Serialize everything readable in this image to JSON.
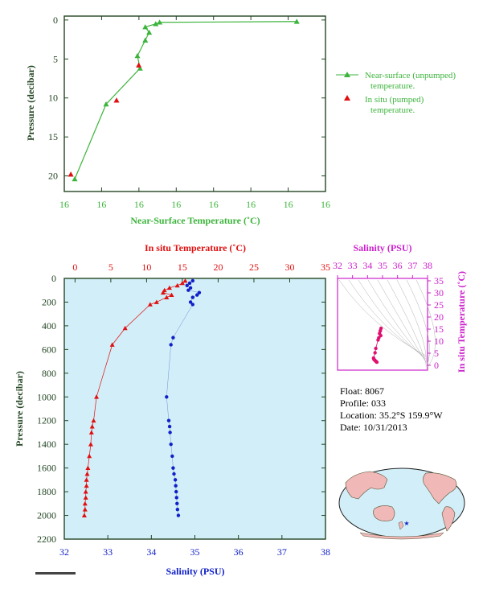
{
  "colors": {
    "green": "#3cb43c",
    "red": "#e01010",
    "blue": "#1020c8",
    "magenta": "#cc22cc",
    "axis_dark": "#234523",
    "panel_bg": "#d2eef8",
    "land": "#f1b8b8",
    "ocean": "#d2eef8"
  },
  "info": {
    "float": "Float:  8067",
    "profile": "Profile:  033",
    "location": "Location:  35.2°S  159.9°W",
    "date": "Date:  10/31/2013"
  },
  "map": {
    "star_label": "★"
  },
  "chart_data": [
    {
      "id": "near_surface",
      "type": "line",
      "xlabel": "Near-Surface Temperature (˚C)",
      "ylabel": "Pressure (decibar)",
      "x_tick_labels": [
        "16",
        "16",
        "16",
        "16",
        "16",
        "16",
        "16",
        "16"
      ],
      "xlim": [
        15.2,
        17.2
      ],
      "ylim": [
        22,
        -0.5
      ],
      "y_ticks": [
        0,
        5,
        10,
        15,
        20
      ],
      "legend": {
        "position": "right",
        "unpumped_line1": "Near-surface (unpumped)",
        "unpumped_line2": "temperature.",
        "pumped_line1": "In situ (pumped)",
        "pumped_line2": "temperature."
      },
      "series": [
        {
          "name": "Near-surface (unpumped) temperature.",
          "color": "#3cb43c",
          "points": [
            [
              16.98,
              0.2
            ],
            [
              15.93,
              0.3
            ],
            [
              15.9,
              0.5
            ],
            [
              15.82,
              0.9
            ],
            [
              15.85,
              1.6
            ],
            [
              15.82,
              2.6
            ],
            [
              15.76,
              4.6
            ],
            [
              15.78,
              6.2
            ],
            [
              15.52,
              10.8
            ],
            [
              15.28,
              20.4
            ]
          ]
        },
        {
          "name": "In situ (pumped) temperature.",
          "color": "#e01010",
          "points": [
            [
              15.77,
              5.8
            ],
            [
              15.6,
              10.3
            ],
            [
              15.25,
              19.8
            ]
          ]
        }
      ]
    },
    {
      "id": "profile",
      "type": "scatter",
      "top_xlabel": "In situ Temperature (˚C)",
      "bottom_xlabel": "Salinity (PSU)",
      "ylabel": "Pressure (decibar)",
      "temp_ticks": [
        0,
        5,
        10,
        15,
        20,
        25,
        30,
        35
      ],
      "sal_ticks": [
        32,
        33,
        34,
        35,
        36,
        37,
        38
      ],
      "pressure_ticks": [
        0,
        200,
        400,
        600,
        800,
        1000,
        1200,
        1400,
        1600,
        1800,
        2000,
        2200
      ],
      "temp_lim": [
        -1.5,
        35
      ],
      "sal_lim": [
        32,
        38
      ],
      "pressure_lim": [
        0,
        2200
      ],
      "temperature_series": {
        "name": "In situ Temperature",
        "color": "#e01010",
        "pressure": [
          20,
          40,
          60,
          80,
          100,
          120,
          140,
          160,
          200,
          220,
          420,
          560,
          1000,
          1200,
          1250,
          1300,
          1400,
          1500,
          1600,
          1650,
          1700,
          1750,
          1800,
          1850,
          1900,
          1950,
          2000
        ],
        "temperature": [
          15.4,
          15.0,
          14.3,
          13.2,
          12.5,
          12.3,
          13.5,
          12.8,
          11.4,
          10.5,
          7.0,
          5.2,
          3.0,
          2.6,
          2.4,
          2.3,
          2.2,
          2.0,
          1.8,
          1.7,
          1.6,
          1.6,
          1.5,
          1.5,
          1.4,
          1.4,
          1.3
        ]
      },
      "salinity_series": {
        "name": "Salinity",
        "color": "#1020c8",
        "pressure": [
          20,
          40,
          60,
          80,
          100,
          120,
          140,
          160,
          200,
          220,
          500,
          560,
          1000,
          1200,
          1250,
          1300,
          1400,
          1500,
          1600,
          1650,
          1700,
          1750,
          1800,
          1850,
          1900,
          1950,
          2000
        ],
        "salinity": [
          34.95,
          34.88,
          34.82,
          34.9,
          34.85,
          35.1,
          35.05,
          34.95,
          34.9,
          34.95,
          34.5,
          34.45,
          34.35,
          34.4,
          34.42,
          34.43,
          34.45,
          34.48,
          34.5,
          34.52,
          34.55,
          34.56,
          34.57,
          34.58,
          34.59,
          34.6,
          34.62
        ]
      }
    },
    {
      "id": "ts_diagram",
      "type": "scatter",
      "top_xlabel": "Salinity (PSU)",
      "ylabel": "In situ Temperature (˚C)",
      "sal_ticks": [
        32,
        33,
        34,
        35,
        36,
        37,
        38
      ],
      "temp_ticks": [
        0,
        5,
        10,
        15,
        20,
        25,
        30,
        35
      ],
      "sal_lim": [
        32,
        38
      ],
      "temp_lim": [
        -2,
        36
      ],
      "color": "#e01070",
      "points": [
        [
          34.9,
          15.3
        ],
        [
          34.85,
          14.3
        ],
        [
          34.8,
          13.2
        ],
        [
          34.88,
          12.3
        ],
        [
          34.75,
          11.4
        ],
        [
          34.7,
          10.5
        ],
        [
          34.55,
          7.0
        ],
        [
          34.5,
          5.2
        ],
        [
          34.4,
          3.0
        ],
        [
          34.42,
          2.6
        ],
        [
          34.45,
          2.3
        ],
        [
          34.5,
          2.0
        ],
        [
          34.55,
          1.7
        ],
        [
          34.6,
          1.4
        ],
        [
          34.62,
          1.3
        ]
      ]
    }
  ]
}
